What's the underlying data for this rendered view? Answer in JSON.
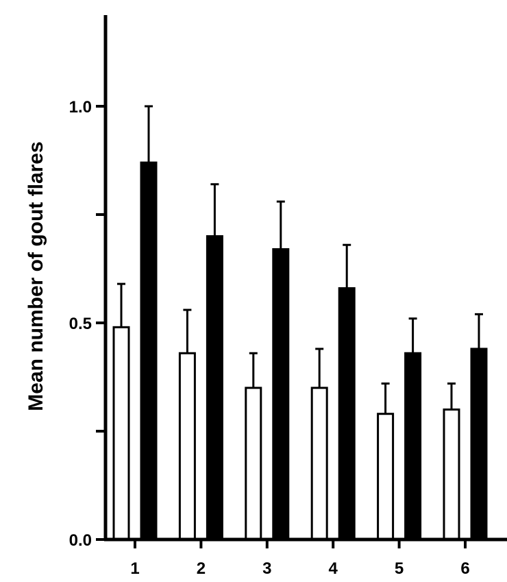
{
  "chart_data": {
    "type": "bar",
    "title": "",
    "xlabel": "",
    "ylabel": "Mean number of gout flares",
    "categories": [
      "1",
      "2",
      "3",
      "4",
      "5",
      "6"
    ],
    "ylim": [
      0,
      1.2
    ],
    "yticks": [
      {
        "value": 0.0,
        "label": "0.0"
      },
      {
        "value": 0.25,
        "label": ""
      },
      {
        "value": 0.5,
        "label": "0.5"
      },
      {
        "value": 0.75,
        "label": ""
      },
      {
        "value": 1.0,
        "label": "1.0"
      }
    ],
    "grid": false,
    "series": [
      {
        "fill": "#ffffff",
        "values": [
          0.49,
          0.43,
          0.35,
          0.35,
          0.29,
          0.3
        ],
        "errors": [
          0.1,
          0.1,
          0.08,
          0.09,
          0.07,
          0.06
        ]
      },
      {
        "fill": "#000000",
        "values": [
          0.87,
          0.7,
          0.67,
          0.58,
          0.43,
          0.44
        ],
        "errors": [
          0.13,
          0.12,
          0.11,
          0.1,
          0.08,
          0.08
        ]
      }
    ]
  }
}
